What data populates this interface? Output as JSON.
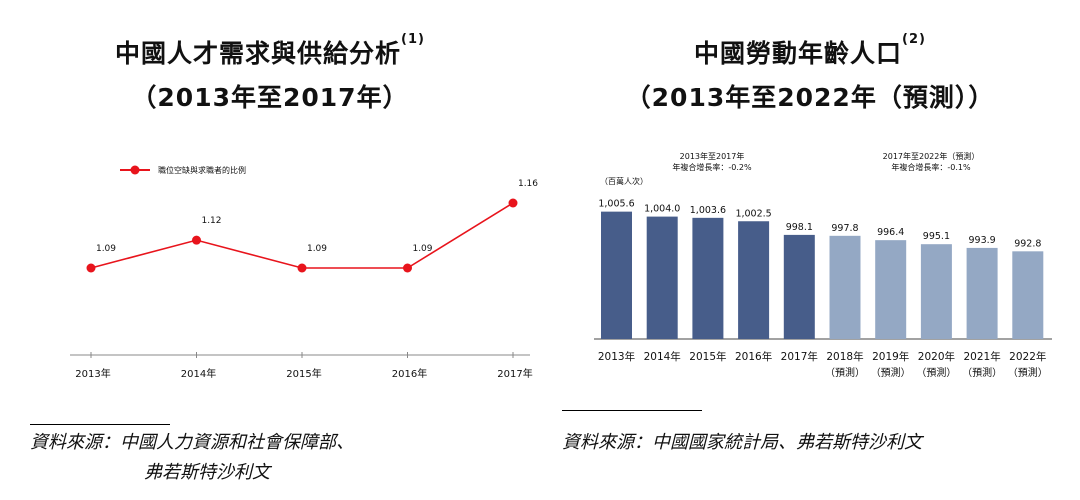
{
  "left": {
    "title_line1": "中國人才需求與供給分析",
    "title_sup": "(1)",
    "title_line2": "（2013年至2017年）",
    "source_line1": "資料來源：中國人力資源和社會保障部、",
    "source_line2": "弗若斯特沙利文"
  },
  "right": {
    "title_line1": "中國勞動年齡人口",
    "title_sup": "(2)",
    "title_line2": "（2013年至2022年（預測））",
    "source_line1": "資料來源：中國國家統計局、弗若斯特沙利文"
  },
  "chart_data": [
    {
      "type": "line",
      "title": "中國人才需求與供給分析",
      "categories": [
        "2013年",
        "2014年",
        "2015年",
        "2016年",
        "2017年"
      ],
      "series": [
        {
          "name": "職位空缺與求職者的比例",
          "values": [
            1.09,
            1.12,
            1.09,
            1.09,
            1.16
          ],
          "color": "#e8141c"
        }
      ],
      "data_labels": [
        "1.09",
        "1.12",
        "1.09",
        "1.09",
        "1.16"
      ],
      "legend": "top-left",
      "grid": false
    },
    {
      "type": "bar",
      "title": "中國勞動年齡人口",
      "unit_label": "（百萬人次）",
      "categories": [
        {
          "line1": "2013年",
          "line2": ""
        },
        {
          "line1": "2014年",
          "line2": ""
        },
        {
          "line1": "2015年",
          "line2": ""
        },
        {
          "line1": "2016年",
          "line2": ""
        },
        {
          "line1": "2017年",
          "line2": ""
        },
        {
          "line1": "2018年",
          "line2": "（預測）"
        },
        {
          "line1": "2019年",
          "line2": "（預測）"
        },
        {
          "line1": "2020年",
          "line2": "（預測）"
        },
        {
          "line1": "2021年",
          "line2": "（預測）"
        },
        {
          "line1": "2022年",
          "line2": "（預測）"
        }
      ],
      "values": [
        1005.6,
        1004.0,
        1003.6,
        1002.5,
        998.1,
        997.8,
        996.4,
        995.1,
        993.9,
        992.8
      ],
      "value_labels": [
        "1,005.6",
        "1,004.0",
        "1,003.6",
        "1,002.5",
        "998.1",
        "997.8",
        "996.4",
        "995.1",
        "993.9",
        "992.8"
      ],
      "forecast": [
        false,
        false,
        false,
        false,
        false,
        true,
        true,
        true,
        true,
        true
      ],
      "colors": {
        "actual": "#475d8a",
        "forecast": "#94a8c4"
      },
      "annotations": [
        {
          "line1": "2013年至2017年",
          "line2": "年複合增長率：-0.2%"
        },
        {
          "line1": "2017年至2022年（預測）",
          "line2": "年複合增長率：-0.1%"
        }
      ],
      "grid": false
    }
  ]
}
